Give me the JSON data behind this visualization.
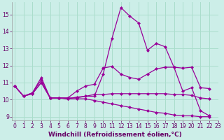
{
  "xlabel": "Windchill (Refroidissement éolien,°C)",
  "background_color": "#cceee8",
  "grid_color": "#aaddcc",
  "line_color": "#990099",
  "ylim": [
    8.8,
    15.7
  ],
  "yticks": [
    9,
    10,
    11,
    12,
    13,
    14,
    15
  ],
  "xticks": [
    0,
    1,
    2,
    3,
    4,
    5,
    6,
    7,
    8,
    9,
    10,
    11,
    12,
    13,
    14,
    15,
    16,
    17,
    18,
    19,
    20,
    21,
    22,
    23
  ],
  "series": [
    [
      10.8,
      10.2,
      10.4,
      11.3,
      10.1,
      10.1,
      10.1,
      10.1,
      10.2,
      10.2,
      11.5,
      13.6,
      15.4,
      14.9,
      14.5,
      12.9,
      13.3,
      13.1,
      11.9,
      10.5,
      10.7,
      9.35,
      9.05
    ],
    [
      10.8,
      10.2,
      10.4,
      11.15,
      10.1,
      10.1,
      10.1,
      10.5,
      10.8,
      10.9,
      11.85,
      11.95,
      11.5,
      11.3,
      11.2,
      11.5,
      11.8,
      11.9,
      11.9,
      11.85,
      11.9,
      10.7,
      10.65
    ],
    [
      10.8,
      10.2,
      10.35,
      11.0,
      10.1,
      10.1,
      10.05,
      10.15,
      10.2,
      10.3,
      10.3,
      10.35,
      10.35,
      10.35,
      10.35,
      10.35,
      10.35,
      10.35,
      10.3,
      10.3,
      10.25,
      10.1,
      10.05
    ],
    [
      10.8,
      10.2,
      10.35,
      11.0,
      10.1,
      10.1,
      10.05,
      10.05,
      10.05,
      9.95,
      9.85,
      9.75,
      9.65,
      9.55,
      9.45,
      9.35,
      9.25,
      9.2,
      9.1,
      9.05,
      9.05,
      9.0,
      9.0
    ]
  ],
  "marker": "D",
  "markersize": 2.0,
  "linewidth": 0.9,
  "label_fontsize": 6.5,
  "tick_fontsize": 5.5
}
